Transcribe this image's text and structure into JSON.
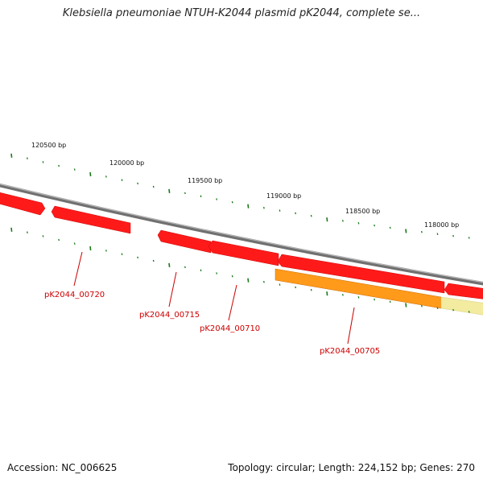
{
  "title": "Klebsiella pneumoniae NTUH-K2044 plasmid pK2044, complete se...",
  "footer": {
    "accession": "Accession: NC_006625",
    "summary": "Topology: circular; Length: 224,152 bp; Genes: 270"
  },
  "ruler": {
    "tick_labels": [
      "120500 bp",
      "120000 bp",
      "119500 bp",
      "119000 bp",
      "118500 bp",
      "118000 bp"
    ]
  },
  "genes": [
    {
      "id": "pK2044_00720",
      "label": "pK2044_00720"
    },
    {
      "id": "pK2044_00715",
      "label": "pK2044_00715"
    },
    {
      "id": "pK2044_00710",
      "label": "pK2044_00710"
    },
    {
      "id": "pK2044_00705",
      "label": "pK2044_00705"
    }
  ],
  "colors": {
    "backbone": "#888888",
    "gene_forward": "#ff0000",
    "feature_orange": "#ff8c00",
    "feature_pale": "#f0e68c",
    "tick": "#1a7a1a",
    "label": "#cc0000"
  }
}
